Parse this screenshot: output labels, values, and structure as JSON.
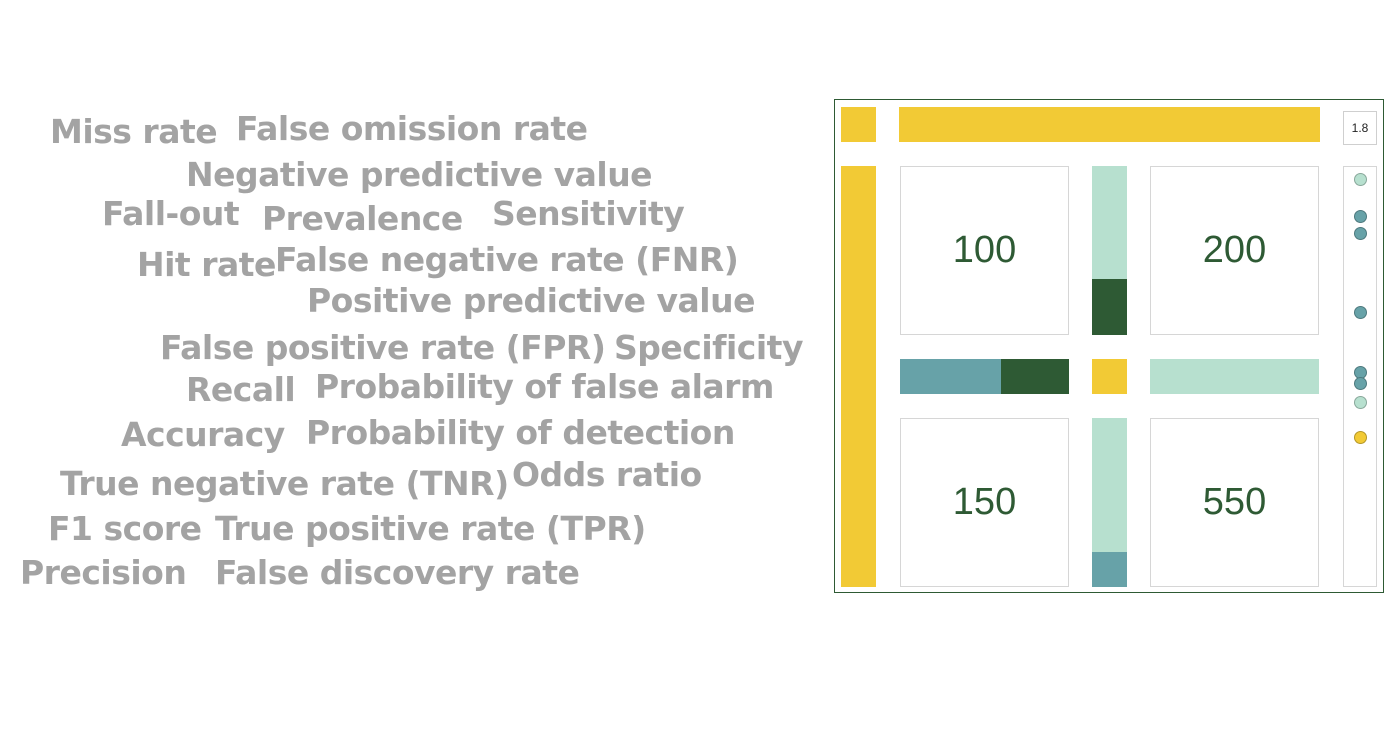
{
  "word_cloud": [
    {
      "text": "Miss rate",
      "size": 33
    },
    {
      "text": "False omission rate",
      "size": 33
    },
    {
      "text": "Negative predictive value",
      "size": 33
    },
    {
      "text": "Fall-out",
      "size": 33
    },
    {
      "text": "Prevalence",
      "size": 33
    },
    {
      "text": "Sensitivity",
      "size": 33
    },
    {
      "text": "Hit rate",
      "size": 33
    },
    {
      "text": "False negative rate (FNR)",
      "size": 33
    },
    {
      "text": "Positive predictive value",
      "size": 33
    },
    {
      "text": "False positive rate (FPR)",
      "size": 33
    },
    {
      "text": "Specificity",
      "size": 33
    },
    {
      "text": "Recall",
      "size": 33
    },
    {
      "text": "Probability of false alarm",
      "size": 33
    },
    {
      "text": "Accuracy",
      "size": 33
    },
    {
      "text": "Probability of detection",
      "size": 33
    },
    {
      "text": "True negative rate (TNR)",
      "size": 33
    },
    {
      "text": "Odds ratio",
      "size": 33
    },
    {
      "text": "F1 score",
      "size": 33
    },
    {
      "text": "True positive rate (TPR)",
      "size": 33
    },
    {
      "text": "Precision",
      "size": 33
    },
    {
      "text": "False discovery rate",
      "size": 33
    }
  ],
  "matrix": {
    "cells": {
      "top_left": "100",
      "top_right": "200",
      "bottom_left": "150",
      "bottom_right": "550"
    },
    "odds_ratio_value": "1.8",
    "colors": {
      "yellow": "#f2ca35",
      "teal": "#67a2a8",
      "dark_green": "#2e5a34",
      "mint": "#b7e0cf",
      "border": "#2e5a34"
    },
    "fractions": {
      "top_bar_yellow": 1.0,
      "upper_vertical_dark_green": 0.33,
      "lower_vertical_teal": 0.21,
      "left_horizontal_dark_green": 0.4,
      "center_square_yellow": 1.0,
      "left_vertical_yellow": 1.0
    },
    "dot_colors": [
      "mint",
      "teal",
      "teal",
      "teal",
      "teal",
      "teal",
      "mint",
      "yellow"
    ]
  }
}
